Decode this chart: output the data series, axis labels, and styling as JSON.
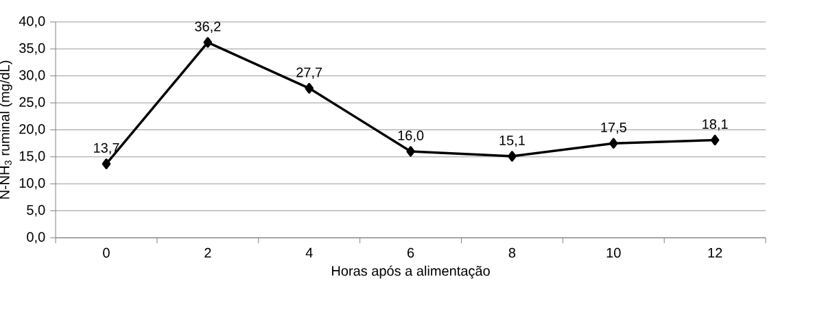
{
  "chart_data": {
    "type": "line",
    "xlabel": "Horas após a alimentação",
    "ylabel": "N-NH$_{3}$ ruminal (mg/dL)",
    "categories": [
      "0",
      "2",
      "4",
      "6",
      "8",
      "10",
      "12"
    ],
    "series": [
      {
        "color": "#000000",
        "values": [
          13.7,
          36.2,
          27.7,
          16.0,
          15.1,
          17.5,
          18.1
        ],
        "value_labels": [
          "13,7",
          "36,2",
          "27,7",
          "16,0",
          "15,1",
          "17,5",
          "18,1"
        ]
      }
    ],
    "ylim": [
      0,
      40
    ],
    "yticks": [
      {
        "value": 0,
        "label": "0,0"
      },
      {
        "value": 5,
        "label": "5,0"
      },
      {
        "value": 10,
        "label": "10,0"
      },
      {
        "value": 15,
        "label": "15,0"
      },
      {
        "value": 20,
        "label": "20,0"
      },
      {
        "value": 25,
        "label": "25,0"
      },
      {
        "value": 30,
        "label": "30,0"
      },
      {
        "value": 35,
        "label": "35,0"
      },
      {
        "value": 40,
        "label": "40,0"
      }
    ],
    "grid": "y",
    "marker": "diamond",
    "line_style": "solid"
  }
}
